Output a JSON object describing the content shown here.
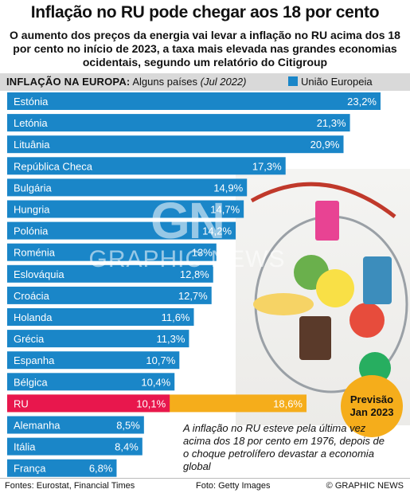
{
  "title": "Inflação no RU pode chegar aos 18 por cento",
  "subtitle": "O aumento dos preços da energia vai levar a inflação no RU acima dos 18 por cento no início de 2023, a taxa mais elevada nas grandes economias ocidentais, segundo um relatório do Citigroup",
  "chart_header": {
    "bold": "INFLAÇÃO NA EUROPA:",
    "plain": "Alguns países",
    "italic": "(Jul 2022)"
  },
  "legend": {
    "label": "União Europeia"
  },
  "chart_data": {
    "type": "bar",
    "orientation": "horizontal",
    "categories": [
      "Estónia",
      "Letónia",
      "Lituânia",
      "República Checa",
      "Bulgária",
      "Hungria",
      "Polónia",
      "Roménia",
      "Eslováquia",
      "Croácia",
      "Holanda",
      "Grécia",
      "Espanha",
      "Bélgica",
      "RU",
      "Alemanha",
      "Itália",
      "França"
    ],
    "values": [
      23.2,
      21.3,
      20.9,
      17.3,
      14.9,
      14.7,
      14.2,
      13,
      12.8,
      12.7,
      11.6,
      11.3,
      10.7,
      10.4,
      10.1,
      8.5,
      8.4,
      6.8
    ],
    "value_labels": [
      "23,2%",
      "21,3%",
      "20,9%",
      "17,3%",
      "14,9%",
      "14,7%",
      "14,2%",
      "13%",
      "12,8%",
      "12,7%",
      "11,6%",
      "11,3%",
      "10,7%",
      "10,4%",
      "10,1%",
      "8,5%",
      "8,4%",
      "6,8%"
    ],
    "series": [
      {
        "name": "União Europeia"
      }
    ],
    "highlight": {
      "category": "RU",
      "color": "#e8174d"
    },
    "forecast": {
      "category": "RU",
      "value": 18.6,
      "label": "18,6%",
      "color": "#f5ad1b"
    },
    "colors": {
      "eu": "#1a86c8",
      "uk": "#e8174d",
      "forecast": "#f5ad1b"
    }
  },
  "forecast_badge": {
    "line1": "Previsão",
    "line2": "Jan 2023"
  },
  "note": "A inflação no RU esteve pela última vez acima dos 18 por cento em 1976, depois de o choque petrolífero devastar a economia global",
  "watermark": {
    "logo": "GN",
    "text": "GRAPHIC NEWS"
  },
  "footer": {
    "sources": "Fontes: Eurostat, Financial Times",
    "photo": "Foto: Getty Images",
    "copyright": "© GRAPHIC NEWS"
  }
}
